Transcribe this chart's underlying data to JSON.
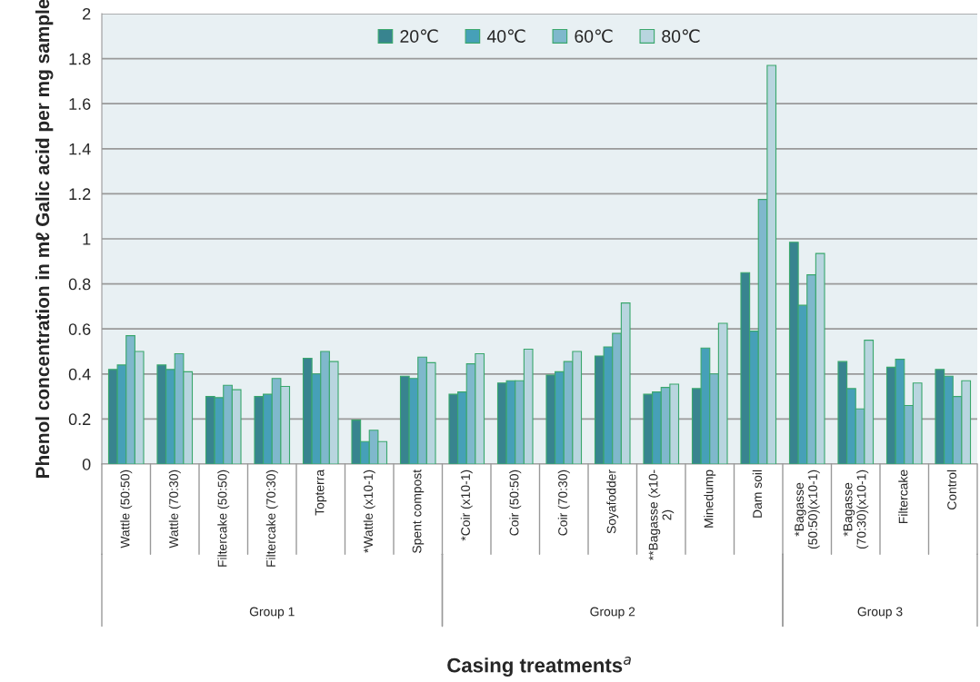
{
  "chart_data": {
    "type": "bar",
    "xlabel": "Casing treatments$^{a}$",
    "ylabel": "Phenol concentration in mℓ Galic acid per mg sample",
    "categories": [
      "Wattle (50:50)",
      "Wattle (70:30)",
      "Filtercake (50:50)",
      "Filtercake (70:30)",
      "Topterra",
      "*Wattle (x10-1)",
      "Spent compost",
      "*Coir (x10-1)",
      "Coir (50:50)",
      "Coir (70:30)",
      "Soyafodder",
      "**Bagasse (x10-\n2)",
      "Minedump",
      "Dam soil",
      "*Bagasse\n(50:50)(x10-1)",
      "*Bagasse\n(70:30)(x10-1)",
      "Filtercake",
      "Control"
    ],
    "series": [
      {
        "name": "20℃",
        "color": "#38848f",
        "values": [
          0.42,
          0.44,
          0.3,
          0.3,
          0.47,
          0.195,
          0.39,
          0.31,
          0.36,
          0.395,
          0.48,
          0.31,
          0.335,
          0.85,
          0.985,
          0.455,
          0.43,
          0.42
        ]
      },
      {
        "name": "40℃",
        "color": "#46a0b8",
        "values": [
          0.44,
          0.42,
          0.295,
          0.31,
          0.4,
          0.1,
          0.38,
          0.32,
          0.37,
          0.41,
          0.52,
          0.32,
          0.515,
          0.59,
          0.705,
          0.335,
          0.465,
          0.39
        ]
      },
      {
        "name": "60℃",
        "color": "#7fb8cc",
        "values": [
          0.57,
          0.49,
          0.35,
          0.38,
          0.5,
          0.15,
          0.475,
          0.445,
          0.37,
          0.455,
          0.58,
          0.34,
          0.4,
          1.175,
          0.84,
          0.245,
          0.26,
          0.3
        ]
      },
      {
        "name": "80℃",
        "color": "#b8d5df",
        "values": [
          0.5,
          0.41,
          0.33,
          0.345,
          0.455,
          0.1,
          0.45,
          0.49,
          0.51,
          0.5,
          0.715,
          0.355,
          0.625,
          1.77,
          0.935,
          0.55,
          0.36,
          0.37
        ]
      }
    ],
    "annotations": [
      "Group 1",
      "Group 2",
      "Group 3"
    ],
    "ylim": [
      0,
      2
    ],
    "yticks": [
      0,
      0.2,
      0.4,
      0.6,
      0.8,
      1,
      1.2,
      1.4,
      1.6,
      1.8,
      2
    ],
    "grid": "y",
    "legend": "top"
  }
}
